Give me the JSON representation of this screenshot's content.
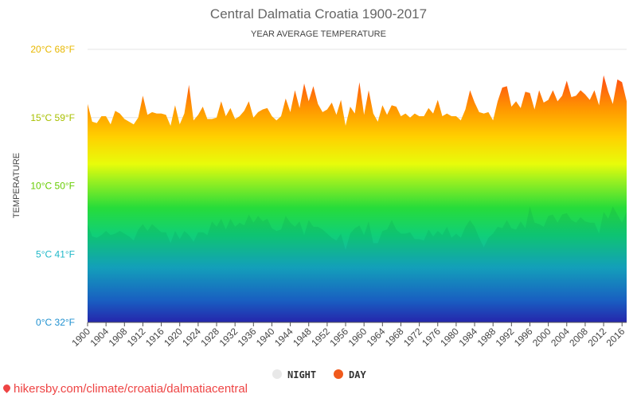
{
  "chart_data": {
    "type": "area",
    "title": "Central Dalmatia Croatia 1900-2017",
    "subtitle": "YEAR AVERAGE TEMPERATURE",
    "ylabel": "TEMPERATURE",
    "ylim": [
      0,
      20
    ],
    "y_ticks": [
      {
        "value": 0,
        "label": "0°C 32°F",
        "color": "#1e90d0"
      },
      {
        "value": 5,
        "label": "5°C 41°F",
        "color": "#20b8c8"
      },
      {
        "value": 10,
        "label": "10°C 50°F",
        "color": "#66cc00"
      },
      {
        "value": 15,
        "label": "15°C 59°F",
        "color": "#a8c000"
      },
      {
        "value": 20,
        "label": "20°C 68°F",
        "color": "#e8b800"
      }
    ],
    "x_range": [
      1900,
      2017
    ],
    "x_ticks": [
      1900,
      1904,
      1908,
      1912,
      1916,
      1920,
      1924,
      1928,
      1932,
      1936,
      1940,
      1944,
      1948,
      1952,
      1956,
      1960,
      1964,
      1968,
      1972,
      1976,
      1980,
      1984,
      1988,
      1992,
      1996,
      2000,
      2004,
      2008,
      2012,
      2016
    ],
    "grid": true,
    "legend_position": "bottom",
    "series": [
      {
        "name": "NIGHT",
        "legend_color": "#e8e8e8",
        "points": [
          [
            1900,
            7.2
          ],
          [
            1901,
            6.3
          ],
          [
            1902,
            6.2
          ],
          [
            1903,
            6.4
          ],
          [
            1904,
            6.7
          ],
          [
            1905,
            6.4
          ],
          [
            1906,
            6.5
          ],
          [
            1907,
            6.7
          ],
          [
            1908,
            6.5
          ],
          [
            1909,
            6.3
          ],
          [
            1910,
            6.0
          ],
          [
            1911,
            6.8
          ],
          [
            1912,
            7.2
          ],
          [
            1913,
            6.7
          ],
          [
            1914,
            7.2
          ],
          [
            1915,
            6.9
          ],
          [
            1916,
            6.6
          ],
          [
            1917,
            6.6
          ],
          [
            1918,
            5.8
          ],
          [
            1919,
            6.7
          ],
          [
            1920,
            6.1
          ],
          [
            1921,
            6.7
          ],
          [
            1922,
            6.4
          ],
          [
            1923,
            5.9
          ],
          [
            1924,
            6.6
          ],
          [
            1925,
            6.6
          ],
          [
            1926,
            6.4
          ],
          [
            1927,
            7.4
          ],
          [
            1928,
            7.0
          ],
          [
            1929,
            7.6
          ],
          [
            1930,
            6.8
          ],
          [
            1931,
            7.6
          ],
          [
            1932,
            7.0
          ],
          [
            1933,
            7.3
          ],
          [
            1934,
            7.1
          ],
          [
            1935,
            7.9
          ],
          [
            1936,
            7.3
          ],
          [
            1937,
            7.8
          ],
          [
            1938,
            7.4
          ],
          [
            1939,
            7.6
          ],
          [
            1940,
            6.9
          ],
          [
            1941,
            6.7
          ],
          [
            1942,
            6.8
          ],
          [
            1943,
            7.8
          ],
          [
            1944,
            7.3
          ],
          [
            1945,
            7.0
          ],
          [
            1946,
            7.4
          ],
          [
            1947,
            6.4
          ],
          [
            1948,
            7.5
          ],
          [
            1949,
            7.0
          ],
          [
            1950,
            7.0
          ],
          [
            1951,
            6.8
          ],
          [
            1952,
            6.5
          ],
          [
            1953,
            6.2
          ],
          [
            1954,
            6.0
          ],
          [
            1955,
            6.5
          ],
          [
            1956,
            5.3
          ],
          [
            1957,
            6.5
          ],
          [
            1958,
            6.9
          ],
          [
            1959,
            7.1
          ],
          [
            1960,
            6.4
          ],
          [
            1961,
            7.4
          ],
          [
            1962,
            5.8
          ],
          [
            1963,
            5.8
          ],
          [
            1964,
            6.7
          ],
          [
            1965,
            6.8
          ],
          [
            1966,
            7.5
          ],
          [
            1967,
            6.8
          ],
          [
            1968,
            6.5
          ],
          [
            1969,
            6.5
          ],
          [
            1970,
            6.6
          ],
          [
            1971,
            6.1
          ],
          [
            1972,
            6.1
          ],
          [
            1973,
            6.0
          ],
          [
            1974,
            6.8
          ],
          [
            1975,
            6.3
          ],
          [
            1976,
            6.7
          ],
          [
            1977,
            6.4
          ],
          [
            1978,
            7.0
          ],
          [
            1979,
            6.2
          ],
          [
            1980,
            6.5
          ],
          [
            1981,
            6.2
          ],
          [
            1982,
            7.0
          ],
          [
            1983,
            7.5
          ],
          [
            1984,
            7.0
          ],
          [
            1985,
            6.2
          ],
          [
            1986,
            5.5
          ],
          [
            1987,
            6.2
          ],
          [
            1988,
            6.5
          ],
          [
            1989,
            7.0
          ],
          [
            1990,
            6.9
          ],
          [
            1991,
            7.5
          ],
          [
            1992,
            6.9
          ],
          [
            1993,
            6.8
          ],
          [
            1994,
            7.4
          ],
          [
            1995,
            6.9
          ],
          [
            1996,
            8.5
          ],
          [
            1997,
            7.3
          ],
          [
            1998,
            7.2
          ],
          [
            1999,
            7.0
          ],
          [
            2000,
            7.8
          ],
          [
            2001,
            7.9
          ],
          [
            2002,
            7.3
          ],
          [
            2003,
            7.9
          ],
          [
            2004,
            8.0
          ],
          [
            2005,
            7.5
          ],
          [
            2006,
            7.3
          ],
          [
            2007,
            7.7
          ],
          [
            2008,
            7.4
          ],
          [
            2009,
            7.3
          ],
          [
            2010,
            7.3
          ],
          [
            2011,
            6.5
          ],
          [
            2012,
            8.1
          ],
          [
            2013,
            7.6
          ],
          [
            2014,
            8.5
          ],
          [
            2015,
            7.9
          ],
          [
            2016,
            7.3
          ],
          [
            2017,
            8.1
          ]
        ]
      },
      {
        "name": "DAY",
        "legend_color": "#f05a1c",
        "points": [
          [
            1900,
            16.0
          ],
          [
            1901,
            14.7
          ],
          [
            1902,
            14.6
          ],
          [
            1903,
            15.1
          ],
          [
            1904,
            15.1
          ],
          [
            1905,
            14.5
          ],
          [
            1906,
            15.5
          ],
          [
            1907,
            15.3
          ],
          [
            1908,
            14.9
          ],
          [
            1909,
            14.7
          ],
          [
            1910,
            14.5
          ],
          [
            1911,
            15.0
          ],
          [
            1912,
            16.6
          ],
          [
            1913,
            15.2
          ],
          [
            1914,
            15.4
          ],
          [
            1915,
            15.3
          ],
          [
            1916,
            15.3
          ],
          [
            1917,
            15.2
          ],
          [
            1918,
            14.4
          ],
          [
            1919,
            15.9
          ],
          [
            1920,
            14.5
          ],
          [
            1921,
            15.3
          ],
          [
            1922,
            17.4
          ],
          [
            1923,
            14.8
          ],
          [
            1924,
            15.2
          ],
          [
            1925,
            15.8
          ],
          [
            1926,
            14.9
          ],
          [
            1927,
            14.9
          ],
          [
            1928,
            15.0
          ],
          [
            1929,
            16.2
          ],
          [
            1930,
            15.1
          ],
          [
            1931,
            15.7
          ],
          [
            1932,
            14.9
          ],
          [
            1933,
            15.1
          ],
          [
            1934,
            15.5
          ],
          [
            1935,
            16.2
          ],
          [
            1936,
            15.0
          ],
          [
            1937,
            15.4
          ],
          [
            1938,
            15.6
          ],
          [
            1939,
            15.7
          ],
          [
            1940,
            15.1
          ],
          [
            1941,
            14.8
          ],
          [
            1942,
            15.1
          ],
          [
            1943,
            16.4
          ],
          [
            1944,
            15.4
          ],
          [
            1945,
            17.0
          ],
          [
            1946,
            15.7
          ],
          [
            1947,
            17.5
          ],
          [
            1948,
            16.2
          ],
          [
            1949,
            17.3
          ],
          [
            1950,
            16.0
          ],
          [
            1951,
            15.4
          ],
          [
            1952,
            15.6
          ],
          [
            1953,
            16.1
          ],
          [
            1954,
            15.2
          ],
          [
            1955,
            16.3
          ],
          [
            1956,
            14.4
          ],
          [
            1957,
            15.8
          ],
          [
            1958,
            15.3
          ],
          [
            1959,
            17.6
          ],
          [
            1960,
            15.2
          ],
          [
            1961,
            17.0
          ],
          [
            1962,
            15.3
          ],
          [
            1963,
            14.7
          ],
          [
            1964,
            15.9
          ],
          [
            1965,
            15.2
          ],
          [
            1966,
            15.9
          ],
          [
            1967,
            15.8
          ],
          [
            1968,
            15.1
          ],
          [
            1969,
            15.3
          ],
          [
            1970,
            15.0
          ],
          [
            1971,
            15.3
          ],
          [
            1972,
            15.1
          ],
          [
            1973,
            15.1
          ],
          [
            1974,
            15.7
          ],
          [
            1975,
            15.3
          ],
          [
            1976,
            16.3
          ],
          [
            1977,
            15.1
          ],
          [
            1978,
            15.3
          ],
          [
            1979,
            15.1
          ],
          [
            1980,
            15.1
          ],
          [
            1981,
            14.8
          ],
          [
            1982,
            15.6
          ],
          [
            1983,
            17.0
          ],
          [
            1984,
            16.1
          ],
          [
            1985,
            15.4
          ],
          [
            1986,
            15.3
          ],
          [
            1987,
            15.4
          ],
          [
            1988,
            14.8
          ],
          [
            1989,
            16.2
          ],
          [
            1990,
            17.2
          ],
          [
            1991,
            17.3
          ],
          [
            1992,
            15.8
          ],
          [
            1993,
            16.2
          ],
          [
            1994,
            15.7
          ],
          [
            1995,
            16.9
          ],
          [
            1996,
            16.8
          ],
          [
            1997,
            15.6
          ],
          [
            1998,
            17.0
          ],
          [
            1999,
            16.1
          ],
          [
            2000,
            16.3
          ],
          [
            2001,
            17.0
          ],
          [
            2002,
            16.2
          ],
          [
            2003,
            16.6
          ],
          [
            2004,
            17.7
          ],
          [
            2005,
            16.5
          ],
          [
            2006,
            16.6
          ],
          [
            2007,
            17.0
          ],
          [
            2008,
            16.7
          ],
          [
            2009,
            16.3
          ],
          [
            2010,
            17.0
          ],
          [
            2011,
            15.9
          ],
          [
            2012,
            18.1
          ],
          [
            2013,
            16.9
          ],
          [
            2014,
            16.0
          ],
          [
            2015,
            17.8
          ],
          [
            2016,
            17.6
          ],
          [
            2017,
            16.2
          ]
        ]
      }
    ],
    "source_text": "hikersby.com/climate/croatia/dalmatiacentral"
  }
}
